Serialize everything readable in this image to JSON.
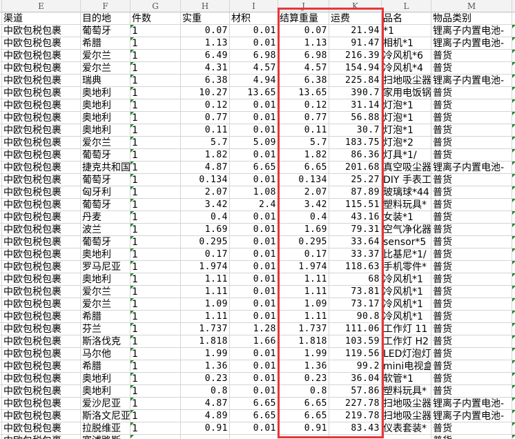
{
  "columns": [
    "E",
    "F",
    "G",
    "H",
    "I",
    "J",
    "K",
    "L",
    "M"
  ],
  "headers": [
    "渠道",
    "目的地",
    "件数",
    "实重",
    "材积",
    "结算重量",
    "运费",
    "品名",
    "物品类别"
  ],
  "highlight_color": "#e8353a",
  "highlighted_columns": [
    "结算重量",
    "运费"
  ],
  "rows": [
    [
      "中欧包税包裹",
      "葡萄牙",
      "1",
      "0.07",
      "0.01",
      "0.07",
      "21.94",
      "*1",
      "锂离子内置电池-"
    ],
    [
      "中欧包税包裹",
      "希腊",
      "1",
      "1.13",
      "0.01",
      "1.13",
      "91.47",
      "相机*1",
      "锂离子内置电池-"
    ],
    [
      "中欧包税包裹",
      "爱尔兰",
      "1",
      "6.49",
      "6.98",
      "6.98",
      "216.39",
      "冷风机*6",
      "普货"
    ],
    [
      "中欧包税包裹",
      "爱尔兰",
      "1",
      "4.31",
      "4.57",
      "4.57",
      "154.94",
      "冷风机*4",
      "普货"
    ],
    [
      "中欧包税包裹",
      "瑞典",
      "1",
      "6.38",
      "4.94",
      "6.38",
      "225.84",
      "扫地吸尘器",
      "锂离子内置电池-"
    ],
    [
      "中欧包税包裹",
      "奥地利",
      "1",
      "10.27",
      "13.65",
      "13.65",
      "390.7",
      "家用电饭锅",
      "普货"
    ],
    [
      "中欧包税包裹",
      "奥地利",
      "1",
      "0.12",
      "0.01",
      "0.12",
      "31.14",
      "灯泡*1",
      "普货"
    ],
    [
      "中欧包税包裹",
      "奥地利",
      "1",
      "0.77",
      "0.01",
      "0.77",
      "56.88",
      "灯泡*1",
      "普货"
    ],
    [
      "中欧包税包裹",
      "奥地利",
      "1",
      "0.11",
      "0.01",
      "0.11",
      "30.7",
      "灯泡*1",
      "普货"
    ],
    [
      "中欧包税包裹",
      "爱尔兰",
      "1",
      "5.7",
      "5.09",
      "5.7",
      "183.75",
      "灯泡*2",
      "普货"
    ],
    [
      "中欧包税包裹",
      "葡萄牙",
      "1",
      "1.82",
      "0.01",
      "1.82",
      "86.36",
      "灯具*1/",
      "普货"
    ],
    [
      "中欧包税包裹",
      "捷克共和国",
      "1",
      "4.87",
      "6.65",
      "6.65",
      "201.68",
      "真空吸尘器",
      "锂离子内置电池-"
    ],
    [
      "中欧包税包裹",
      "葡萄牙",
      "1",
      "0.134",
      "0.01",
      "0.134",
      "25.27",
      "DIY 手表工",
      "普货"
    ],
    [
      "中欧包税包裹",
      "匈牙利",
      "1",
      "2.07",
      "1.08",
      "2.07",
      "87.89",
      "玻璃球*44",
      "普货"
    ],
    [
      "中欧包税包裹",
      "葡萄牙",
      "1",
      "3.42",
      "2.4",
      "3.42",
      "115.51",
      "塑料玩具*",
      "普货"
    ],
    [
      "中欧包税包裹",
      "丹麦",
      "1",
      "0.4",
      "0.01",
      "0.4",
      "43.16",
      "女装*1",
      "普货"
    ],
    [
      "中欧包税包裹",
      "波兰",
      "1",
      "1.69",
      "0.01",
      "1.69",
      "79.31",
      "空气净化器",
      "普货"
    ],
    [
      "中欧包税包裹",
      "葡萄牙",
      "1",
      "0.295",
      "0.01",
      "0.295",
      "33.64",
      "sensor*5",
      "普货"
    ],
    [
      "中欧包税包裹",
      "奥地利",
      "1",
      "0.17",
      "0.01",
      "0.17",
      "33.37",
      "比基尼*1/",
      "普货"
    ],
    [
      "中欧包税包裹",
      "罗马尼亚",
      "1",
      "1.974",
      "0.01",
      "1.974",
      "118.63",
      "手机零件*",
      "普货"
    ],
    [
      "中欧包税包裹",
      "奥地利",
      "1",
      "1.11",
      "0.01",
      "1.11",
      "68",
      "冷风机*1",
      "普货"
    ],
    [
      "中欧包税包裹",
      "爱尔兰",
      "1",
      "1.11",
      "0.01",
      "1.11",
      "73.81",
      "冷风机*1",
      "普货"
    ],
    [
      "中欧包税包裹",
      "爱尔兰",
      "1",
      "1.09",
      "0.01",
      "1.09",
      "73.17",
      "冷风机*1",
      "普货"
    ],
    [
      "中欧包税包裹",
      "希腊",
      "1",
      "1.11",
      "0.01",
      "1.11",
      "90.8",
      "冷风机*1",
      "普货"
    ],
    [
      "中欧包税包裹",
      "芬兰",
      "1",
      "1.737",
      "1.28",
      "1.737",
      "111.06",
      "工作灯 11",
      "普货"
    ],
    [
      "中欧包税包裹",
      "斯洛伐克",
      "1",
      "1.818",
      "1.66",
      "1.818",
      "103.59",
      "工作灯 H2",
      "普货"
    ],
    [
      "中欧包税包裹",
      "马尔他",
      "1",
      "1.99",
      "0.01",
      "1.99",
      "119.56",
      "LED灯泡灯",
      "普货"
    ],
    [
      "中欧包税包裹",
      "希腊",
      "1",
      "1.36",
      "0.01",
      "1.36",
      "99.2",
      "mini电视盒",
      "普货"
    ],
    [
      "中欧包税包裹",
      "奥地利",
      "1",
      "0.23",
      "0.01",
      "0.23",
      "36.04",
      "软管*1",
      "普货"
    ],
    [
      "中欧包税包裹",
      "奥地利",
      "1",
      "0.8",
      "0.01",
      "0.8",
      "57.86",
      "塑料玩具*",
      "普货"
    ],
    [
      "中欧包税包裹",
      "爱沙尼亚",
      "1",
      "4.87",
      "6.65",
      "6.65",
      "227.78",
      "扫地吸尘器",
      "锂离子内置电池-"
    ],
    [
      "中欧包税包裹",
      "斯洛文尼亚",
      "1",
      "4.89",
      "6.65",
      "6.65",
      "219.78",
      "扫地吸尘器",
      "锂离子内置电池-"
    ],
    [
      "中欧包税包裹",
      "拉脱维亚",
      "1",
      "0.91",
      "0.01",
      "0.91",
      "83.43",
      "仪表套装*",
      "普货"
    ],
    [
      "中欧包税包裹",
      "塞浦路斯",
      "",
      "",
      "",
      "",
      "",
      "",
      "普货"
    ]
  ]
}
